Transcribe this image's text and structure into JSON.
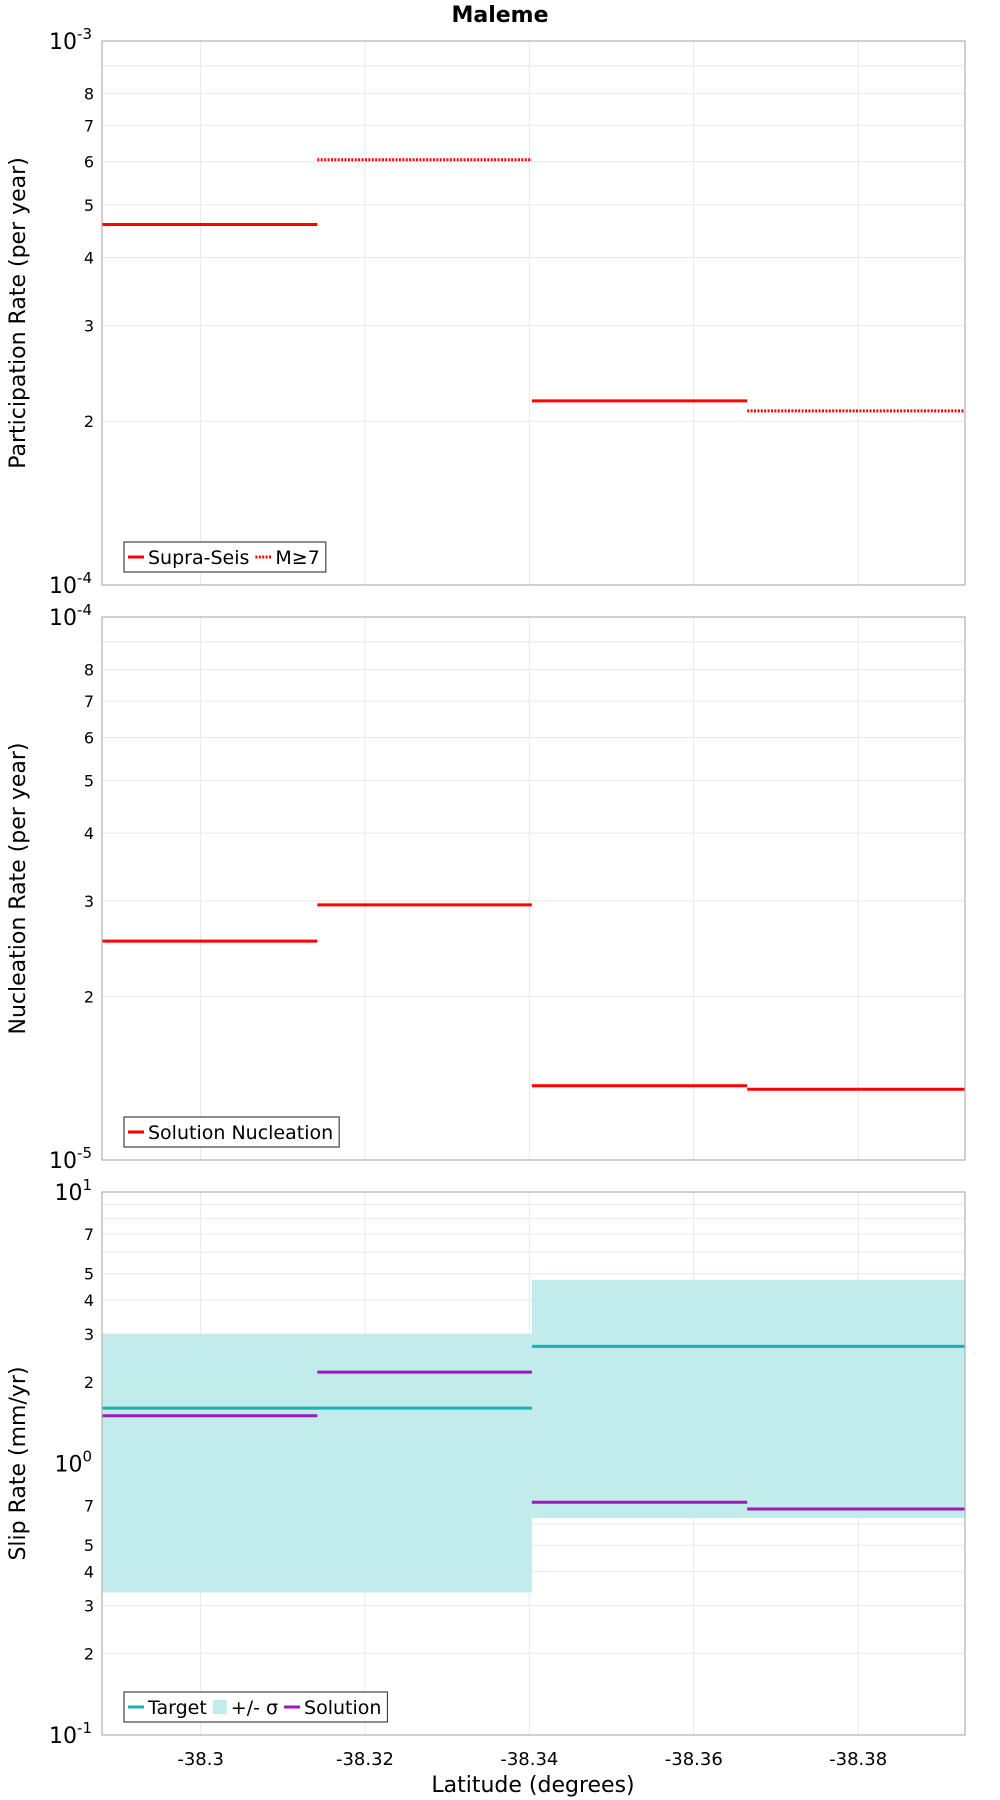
{
  "figure": {
    "title": "Maleme",
    "xlabel": "Latitude (degrees)"
  },
  "colors": {
    "red": "#ff0000",
    "teal": "#17b3b3",
    "band": "#c2ebeb",
    "purple": "#9c1ab8",
    "grid": "#e8e8e8",
    "frame": "#b0b0b0"
  },
  "chart_data": [
    {
      "type": "line",
      "style": "step",
      "ylabel": "Participation Rate (per year)",
      "yscale": "log",
      "ylim": [
        0.0001,
        0.001
      ],
      "xlim": [
        -38.288,
        -38.393
      ],
      "x_ticks": [
        -38.3,
        -38.32,
        -38.34,
        -38.36,
        -38.38
      ],
      "y_ticks": [
        {
          "value": 0.001,
          "base": "10",
          "exp": "-3"
        },
        {
          "value": 0.0008,
          "label": "8"
        },
        {
          "value": 0.0007,
          "label": "7"
        },
        {
          "value": 0.0006,
          "label": "6"
        },
        {
          "value": 0.0005,
          "label": "5"
        },
        {
          "value": 0.0004,
          "label": "4"
        },
        {
          "value": 0.0003,
          "label": "3"
        },
        {
          "value": 0.0002,
          "label": "2"
        },
        {
          "value": 0.0001,
          "base": "10",
          "exp": "-4"
        }
      ],
      "legend": {
        "placement": "bottom-left",
        "entries": [
          {
            "label": "Supra-Seis",
            "swatch": "line",
            "color": "red"
          },
          {
            "label": "M≥7",
            "swatch": "dotted",
            "color": "red"
          }
        ]
      },
      "series": [
        {
          "name": "Supra-Seis",
          "color": "red",
          "dash": "solid",
          "segments": [
            {
              "x0": -38.288,
              "x1": -38.3142,
              "y": 0.00046
            },
            {
              "x0": -38.3403,
              "x1": -38.3665,
              "y": 0.000218
            }
          ]
        },
        {
          "name": "M≥7",
          "color": "red",
          "dash": "dotted",
          "segments": [
            {
              "x0": -38.3142,
              "x1": -38.3403,
              "y": 0.000605
            },
            {
              "x0": -38.3665,
              "x1": -38.393,
              "y": 0.000209
            }
          ]
        }
      ]
    },
    {
      "type": "line",
      "style": "step",
      "ylabel": "Nucleation Rate (per year)",
      "yscale": "log",
      "ylim": [
        1e-05,
        0.0001
      ],
      "xlim": [
        -38.288,
        -38.393
      ],
      "x_ticks": [
        -38.3,
        -38.32,
        -38.34,
        -38.36,
        -38.38
      ],
      "y_ticks": [
        {
          "value": 0.0001,
          "base": "10",
          "exp": "-4"
        },
        {
          "value": 8e-05,
          "label": "8"
        },
        {
          "value": 7e-05,
          "label": "7"
        },
        {
          "value": 6e-05,
          "label": "6"
        },
        {
          "value": 5e-05,
          "label": "5"
        },
        {
          "value": 4e-05,
          "label": "4"
        },
        {
          "value": 3e-05,
          "label": "3"
        },
        {
          "value": 2e-05,
          "label": "2"
        },
        {
          "value": 1e-05,
          "base": "10",
          "exp": "-5"
        }
      ],
      "legend": {
        "placement": "bottom-left",
        "entries": [
          {
            "label": "Solution Nucleation",
            "swatch": "line",
            "color": "red"
          }
        ]
      },
      "series": [
        {
          "name": "Solution Nucleation",
          "color": "red",
          "dash": "solid",
          "segments": [
            {
              "x0": -38.288,
              "x1": -38.3142,
              "y": 2.53e-05
            },
            {
              "x0": -38.3142,
              "x1": -38.3403,
              "y": 2.95e-05
            },
            {
              "x0": -38.3403,
              "x1": -38.3665,
              "y": 1.37e-05
            },
            {
              "x0": -38.3665,
              "x1": -38.393,
              "y": 1.35e-05
            }
          ]
        }
      ]
    },
    {
      "type": "line",
      "style": "step",
      "ylabel": "Slip Rate (mm/yr)",
      "yscale": "log",
      "ylim": [
        0.1,
        10
      ],
      "xlim": [
        -38.288,
        -38.393
      ],
      "x_ticks": [
        -38.3,
        -38.32,
        -38.34,
        -38.36,
        -38.38
      ],
      "y_ticks": [
        {
          "value": 10,
          "base": "10",
          "exp": "1"
        },
        {
          "value": 7,
          "label": "7"
        },
        {
          "value": 5,
          "label": "5"
        },
        {
          "value": 4,
          "label": "4"
        },
        {
          "value": 3,
          "label": "3"
        },
        {
          "value": 2,
          "label": "2"
        },
        {
          "value": 1,
          "base": "10",
          "exp": "0"
        },
        {
          "value": 0.7,
          "label": "7"
        },
        {
          "value": 0.5,
          "label": "5"
        },
        {
          "value": 0.4,
          "label": "4"
        },
        {
          "value": 0.3,
          "label": "3"
        },
        {
          "value": 0.2,
          "label": "2"
        },
        {
          "value": 0.1,
          "base": "10",
          "exp": "-1"
        }
      ],
      "legend": {
        "placement": "bottom-left",
        "entries": [
          {
            "label": "Target",
            "swatch": "line",
            "color": "teal"
          },
          {
            "label": "+/- σ",
            "swatch": "box",
            "color": "band"
          },
          {
            "label": "Solution",
            "swatch": "line",
            "color": "purple"
          }
        ]
      },
      "bands": [
        {
          "name": "+/- σ",
          "color": "band",
          "segments": [
            {
              "x0": -38.288,
              "x1": -38.3403,
              "y0": 0.335,
              "y1": 3.0
            },
            {
              "x0": -38.3403,
              "x1": -38.393,
              "y0": 0.63,
              "y1": 4.75
            }
          ]
        }
      ],
      "series": [
        {
          "name": "Target",
          "color": "teal",
          "dash": "solid",
          "segments": [
            {
              "x0": -38.288,
              "x1": -38.3403,
              "y": 1.6
            },
            {
              "x0": -38.3403,
              "x1": -38.393,
              "y": 2.7
            }
          ]
        },
        {
          "name": "Solution",
          "color": "purple",
          "dash": "solid",
          "segments": [
            {
              "x0": -38.288,
              "x1": -38.3142,
              "y": 1.5
            },
            {
              "x0": -38.3142,
              "x1": -38.3403,
              "y": 2.17
            },
            {
              "x0": -38.3403,
              "x1": -38.3665,
              "y": 0.72
            },
            {
              "x0": -38.3665,
              "x1": -38.393,
              "y": 0.68
            }
          ]
        }
      ]
    }
  ]
}
